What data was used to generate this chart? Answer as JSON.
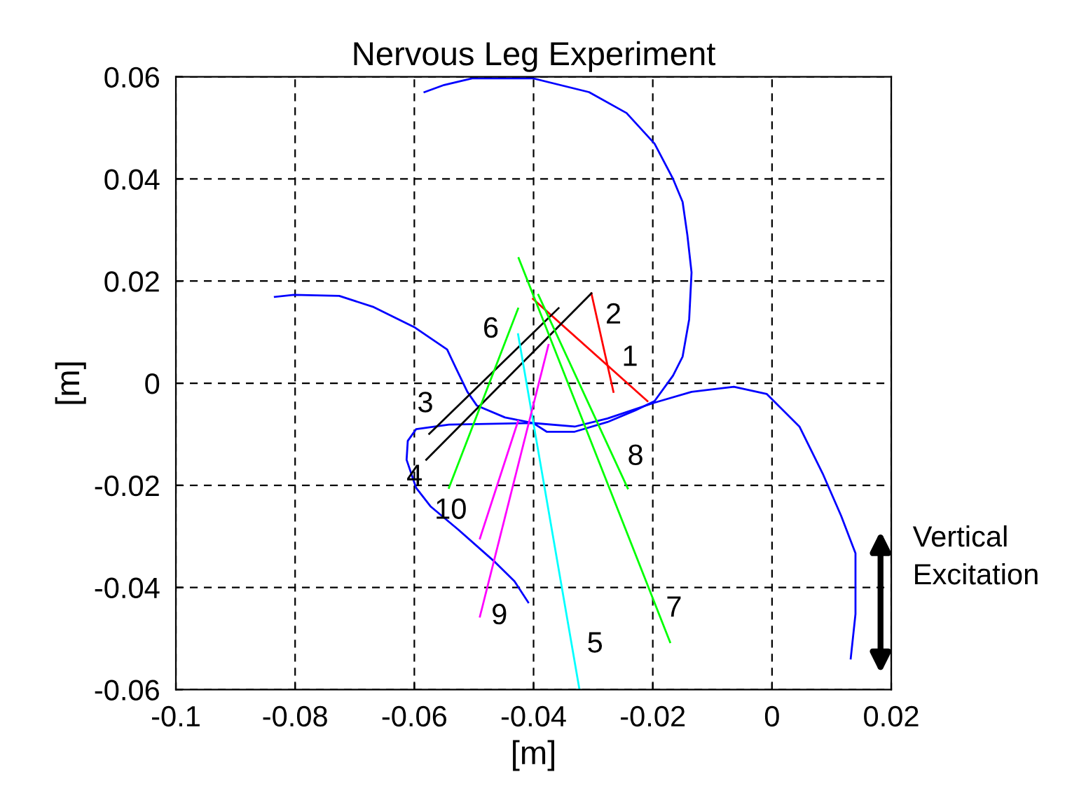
{
  "chart_data": {
    "type": "line",
    "title": "Nervous Leg Experiment",
    "xlabel": "[m]",
    "ylabel": "[m]",
    "xlim": [
      -0.1,
      0.02
    ],
    "ylim": [
      -0.06,
      0.06
    ],
    "xticks": [
      -0.1,
      -0.08,
      -0.06,
      -0.04,
      -0.02,
      0,
      0.02
    ],
    "yticks": [
      -0.06,
      -0.04,
      -0.02,
      0,
      0.02,
      0.04,
      0.06
    ],
    "grid": true,
    "series": [
      {
        "color": "#0000ff",
        "x": [
          -0.0834,
          -0.0802,
          -0.0726,
          -0.0668,
          -0.0599,
          -0.0545,
          -0.053,
          -0.0511,
          -0.0495,
          -0.0448,
          -0.0401,
          -0.0378,
          -0.0331,
          -0.0276,
          -0.0229,
          -0.0197,
          -0.0166,
          -0.015,
          -0.0139,
          -0.0135,
          -0.0142,
          -0.015,
          -0.0166,
          -0.0197,
          -0.0244,
          -0.0307,
          -0.0401,
          -0.0503,
          -0.055,
          -0.0583
        ],
        "values": [
          0.0169,
          0.0173,
          0.0171,
          0.0149,
          0.0109,
          0.0066,
          0.0029,
          -0.0017,
          -0.0044,
          -0.0067,
          -0.0078,
          -0.0095,
          -0.0095,
          -0.0076,
          -0.0053,
          -0.0035,
          0.0015,
          0.0052,
          0.0125,
          0.0217,
          0.029,
          0.0355,
          0.04,
          0.0469,
          0.0529,
          0.057,
          0.0597,
          0.0597,
          0.0584,
          0.057
        ]
      },
      {
        "color": "#0000ff",
        "x": [
          -0.0409,
          -0.0432,
          -0.0464,
          -0.0526,
          -0.0573,
          -0.0597,
          -0.0613,
          -0.0611,
          -0.0597,
          -0.0542,
          -0.0401,
          -0.0331,
          -0.0276,
          -0.0197,
          -0.0135,
          -0.0064,
          -0.0009,
          0.0046,
          0.0085,
          0.0116,
          0.014,
          0.014,
          0.0132
        ],
        "values": [
          -0.0429,
          -0.0388,
          -0.0351,
          -0.0287,
          -0.0241,
          -0.0205,
          -0.015,
          -0.0113,
          -0.009,
          -0.0081,
          -0.0078,
          -0.0085,
          -0.0069,
          -0.0038,
          -0.0017,
          -0.0007,
          -0.0021,
          -0.0085,
          -0.0177,
          -0.026,
          -0.0333,
          -0.0452,
          -0.0539
        ]
      },
      {
        "name": "1",
        "color": "#ff0000",
        "x": [
          -0.0401,
          -0.0209
        ],
        "values": [
          0.0165,
          -0.0035
        ]
      },
      {
        "name": "2",
        "color": "#ff0000",
        "x": [
          -0.0303,
          -0.0266
        ],
        "values": [
          0.0176,
          -0.0017
        ]
      },
      {
        "name": "3",
        "color": "#000000",
        "x": [
          -0.0358,
          -0.0575
        ],
        "values": [
          0.0147,
          -0.0099
        ]
      },
      {
        "name": "4",
        "color": "#000000",
        "x": [
          -0.0303,
          -0.058
        ],
        "values": [
          0.0176,
          -0.015
        ]
      },
      {
        "name": "5",
        "color": "#00ffff",
        "x": [
          -0.0426,
          -0.0323
        ],
        "values": [
          0.0096,
          -0.06
        ]
      },
      {
        "name": "6",
        "color": "#00ff00",
        "x": [
          -0.0426,
          -0.0542
        ],
        "values": [
          0.0146,
          -0.0205
        ]
      },
      {
        "name": "7",
        "color": "#00ff00",
        "x": [
          -0.0425,
          -0.0171
        ],
        "values": [
          0.0245,
          -0.0507
        ]
      },
      {
        "name": "8",
        "color": "#00ff00",
        "x": [
          -0.0392,
          -0.0242
        ],
        "values": [
          0.0173,
          -0.0206
        ]
      },
      {
        "name": "9",
        "color": "#ff00ff",
        "x": [
          -0.0375,
          -0.049
        ],
        "values": [
          0.0075,
          -0.0457
        ]
      },
      {
        "name": "10",
        "color": "#ff00ff",
        "x": [
          -0.0426,
          -0.049
        ],
        "values": [
          -0.0074,
          -0.0304
        ]
      }
    ],
    "annotations": [
      "Vertical Excitation"
    ]
  }
}
